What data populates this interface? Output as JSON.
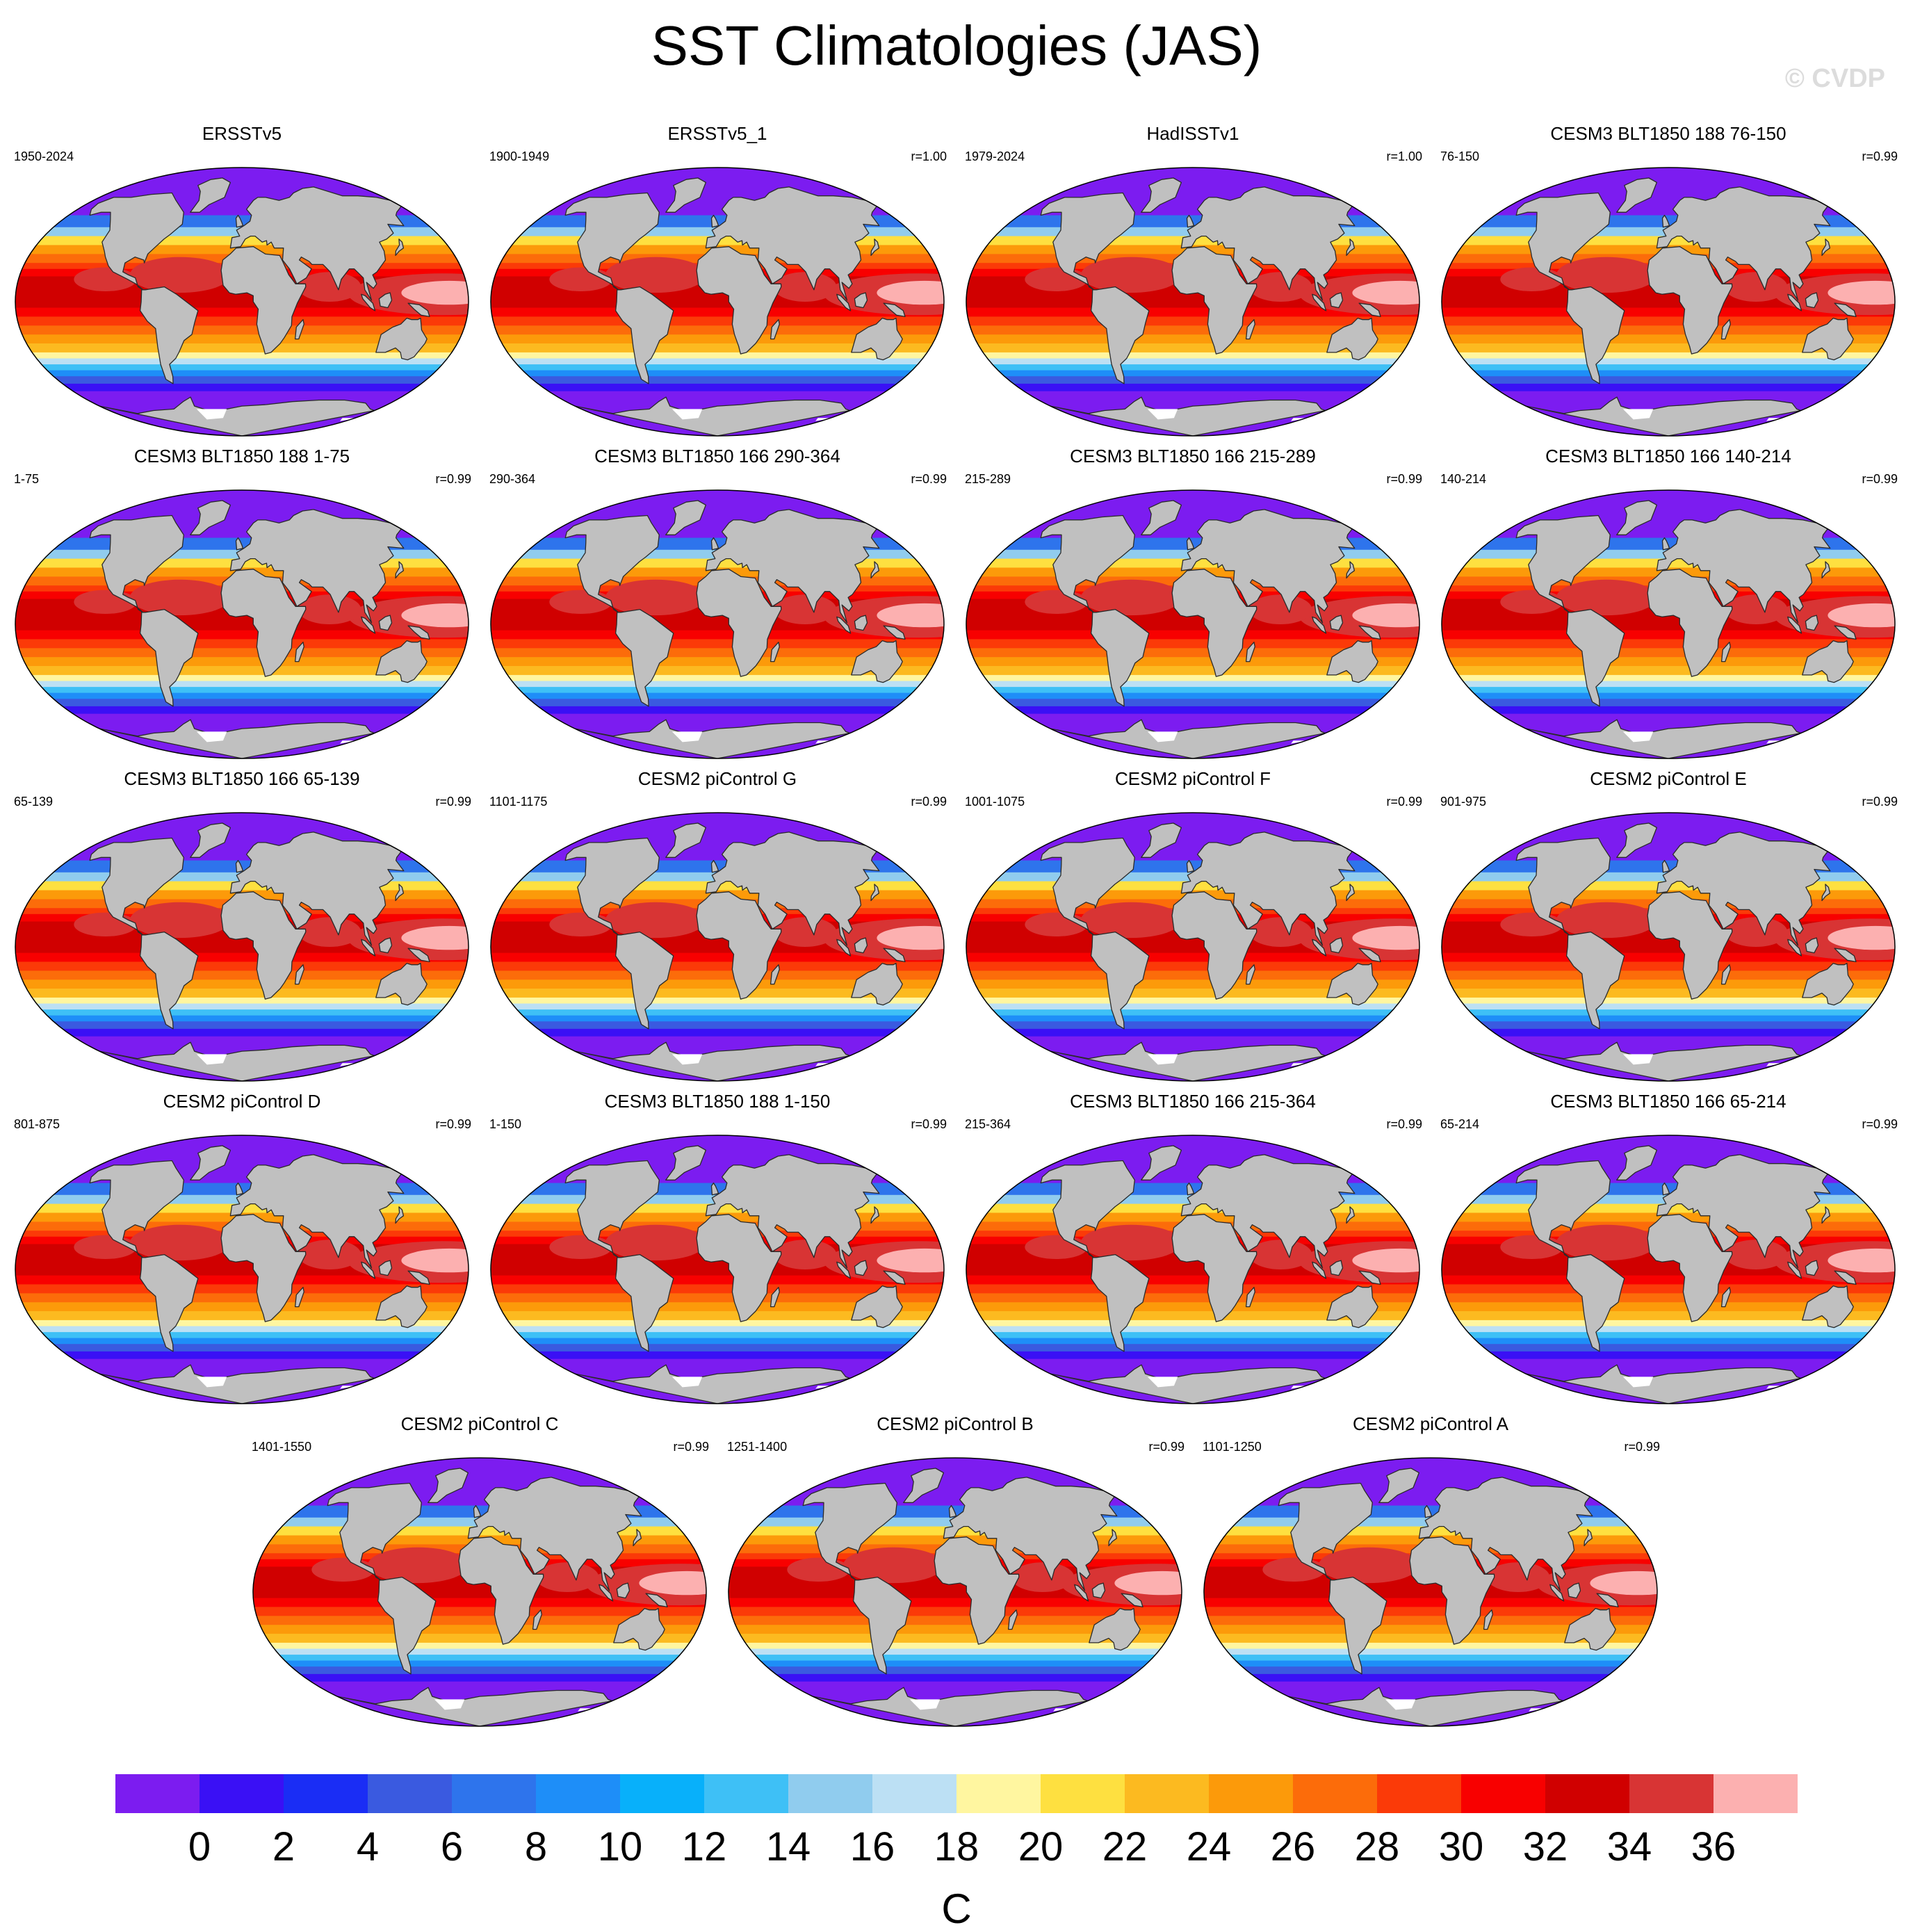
{
  "title": "SST Climatologies (JAS)",
  "watermark": "© CVDP",
  "panels": [
    {
      "title": "ERSSTv5",
      "period": "1950-2024",
      "r": ""
    },
    {
      "title": "ERSSTv5_1",
      "period": "1900-1949",
      "r": "r=1.00"
    },
    {
      "title": "HadISSTv1",
      "period": "1979-2024",
      "r": "r=1.00"
    },
    {
      "title": "CESM3 BLT1850 188 76-150",
      "period": "76-150",
      "r": "r=0.99"
    },
    {
      "title": "CESM3 BLT1850 188 1-75",
      "period": "1-75",
      "r": "r=0.99"
    },
    {
      "title": "CESM3 BLT1850 166 290-364",
      "period": "290-364",
      "r": "r=0.99"
    },
    {
      "title": "CESM3 BLT1850 166 215-289",
      "period": "215-289",
      "r": "r=0.99"
    },
    {
      "title": "CESM3 BLT1850 166 140-214",
      "period": "140-214",
      "r": "r=0.99"
    },
    {
      "title": "CESM3 BLT1850 166 65-139",
      "period": "65-139",
      "r": "r=0.99"
    },
    {
      "title": "CESM2 piControl G",
      "period": "1101-1175",
      "r": "r=0.99"
    },
    {
      "title": "CESM2 piControl F",
      "period": "1001-1075",
      "r": "r=0.99"
    },
    {
      "title": "CESM2 piControl E",
      "period": "901-975",
      "r": "r=0.99"
    },
    {
      "title": "CESM2 piControl D",
      "period": "801-875",
      "r": "r=0.99"
    },
    {
      "title": "CESM3 BLT1850 188 1-150",
      "period": "1-150",
      "r": "r=0.99"
    },
    {
      "title": "CESM3 BLT1850 166 215-364",
      "period": "215-364",
      "r": "r=0.99"
    },
    {
      "title": "CESM3 BLT1850 166 65-214",
      "period": "65-214",
      "r": "r=0.99"
    },
    {
      "title": "CESM2 piControl C",
      "period": "1401-1550",
      "r": "r=0.99"
    },
    {
      "title": "CESM2 piControl B",
      "period": "1251-1400",
      "r": "r=0.99"
    },
    {
      "title": "CESM2 piControl A",
      "period": "1101-1250",
      "r": "r=0.99"
    }
  ],
  "colorbar": {
    "label": "C",
    "tick_labels": [
      "0",
      "2",
      "4",
      "6",
      "8",
      "10",
      "12",
      "14",
      "16",
      "18",
      "20",
      "22",
      "24",
      "26",
      "28",
      "30",
      "32",
      "34",
      "36"
    ],
    "colors": [
      "#7c1cf0",
      "#3a10f5",
      "#1a2df5",
      "#3a5ae0",
      "#2e74ec",
      "#1e8ef8",
      "#08b0fa",
      "#3ec0f6",
      "#90ccee",
      "#bce0f4",
      "#fff6a0",
      "#fee040",
      "#fcba20",
      "#fc9a0a",
      "#fc6c0a",
      "#fb3a08",
      "#f80000",
      "#d00000",
      "#d83434",
      "#fcb0b0"
    ]
  },
  "map_colors": {
    "land": "#c0c0c0",
    "coast": "#2a2a2a",
    "ice": "#ffffff"
  }
}
